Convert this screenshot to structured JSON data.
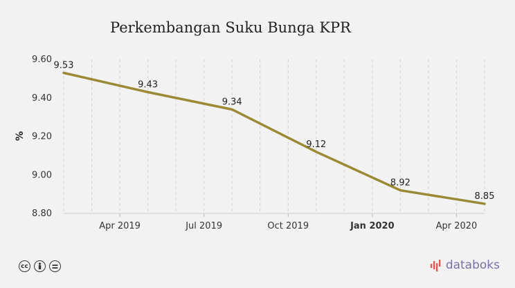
{
  "chart_data": {
    "type": "line",
    "title": "Perkembangan Suku Bunga KPR",
    "xlabel": "",
    "ylabel": "%",
    "ylim": [
      8.8,
      9.6
    ],
    "yticks": [
      "9.60",
      "9.40",
      "9.20",
      "9.00",
      "8.80"
    ],
    "xticks": [
      {
        "label": "Apr 2019",
        "bold": false
      },
      {
        "label": "Jul 2019",
        "bold": false
      },
      {
        "label": "Oct 2019",
        "bold": false
      },
      {
        "label": "Jan 2020",
        "bold": true
      },
      {
        "label": "Apr 2020",
        "bold": false
      }
    ],
    "x": [
      "2019-02",
      "2019-05",
      "2019-08",
      "2019-11",
      "2020-02",
      "2020-05"
    ],
    "series": [
      {
        "values": [
          9.53,
          9.43,
          9.34,
          9.12,
          8.92,
          8.85
        ],
        "labels": [
          "9.53",
          "9.43",
          "9.34",
          "9.12",
          "8.92",
          "8.85"
        ],
        "color": "#9a8a35"
      }
    ],
    "grid": true
  },
  "footer": {
    "license_icons": [
      "creative-commons-icon",
      "attribution-icon",
      "no-derivatives-icon"
    ],
    "brand": "databoks",
    "brand_color": "#7a6fa8"
  }
}
